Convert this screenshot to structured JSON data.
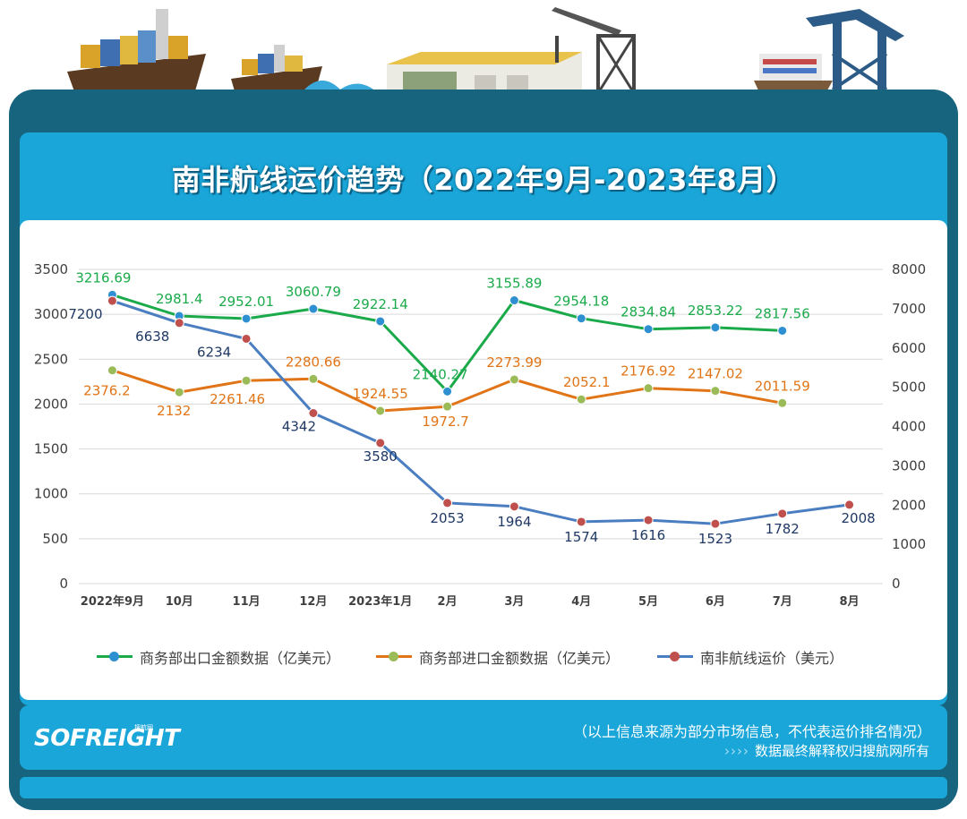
{
  "title": "南非航线运价趋势（2022年9月-2023年8月）",
  "brand": {
    "logo": "SOFREIGHT",
    "logo_sub": "搜航网"
  },
  "footer": {
    "note": "（以上信息来源为部分市场信息，不代表运价排名情况）",
    "arrows": "››››",
    "copyright": "数据最终解释权归搜航网所有"
  },
  "colors": {
    "frame": "#17647f",
    "accent": "#1aa6d8",
    "export_line": "#1aaa4a",
    "export_marker": "#2e8fd1",
    "import_line": "#e07416",
    "import_marker": "#9bbb59",
    "freight_line": "#4a7ec0",
    "freight_marker": "#c0504d"
  },
  "chart_data": {
    "type": "line",
    "categories": [
      "2022年9月",
      "10月",
      "11月",
      "12月",
      "2023年1月",
      "2月",
      "3月",
      "4月",
      "5月",
      "6月",
      "7月",
      "8月"
    ],
    "y_left": {
      "min": 0,
      "max": 3500,
      "ticks": [
        0,
        500,
        1000,
        1500,
        2000,
        2500,
        3000,
        3500
      ]
    },
    "y_right": {
      "min": 0,
      "max": 8000,
      "ticks": [
        0,
        1000,
        2000,
        3000,
        4000,
        5000,
        6000,
        7000,
        8000
      ]
    },
    "series": [
      {
        "key": "export",
        "name": "商务部出口金额数据（亿美元）",
        "axis": "left",
        "values": [
          3216.69,
          2981.4,
          2952.01,
          3060.79,
          2922.14,
          2140.27,
          3155.89,
          2954.18,
          2834.84,
          2853.22,
          2817.56,
          null
        ],
        "labels": [
          "3216.69",
          "2981.4",
          "2952.01",
          "3060.79",
          "2922.14",
          "2140.27",
          "3155.89",
          "2954.18",
          "2834.84",
          "2853.22",
          "2817.56",
          ""
        ]
      },
      {
        "key": "import",
        "name": "商务部进口金额数据（亿美元）",
        "axis": "left",
        "values": [
          2376.2,
          2132,
          2261.46,
          2280.66,
          1924.55,
          1972.7,
          2273.99,
          2052.1,
          2176.92,
          2147.02,
          2011.59,
          null
        ],
        "labels": [
          "2376.2",
          "2132",
          "2261.46",
          "2280.66",
          "1924.55",
          "1972.7",
          "2273.99",
          "2052.1",
          "2176.92",
          "2147.02",
          "2011.59",
          ""
        ]
      },
      {
        "key": "freight",
        "name": "南非航线运价（美元）",
        "axis": "right",
        "values": [
          7200,
          6638,
          6234,
          4342,
          3580,
          2053,
          1964,
          1574,
          1616,
          1523,
          1782,
          2008
        ],
        "labels": [
          "7200",
          "6638",
          "6234",
          "4342",
          "3580",
          "2053",
          "1964",
          "1574",
          "1616",
          "1523",
          "1782",
          "2008"
        ]
      }
    ],
    "legend_position": "bottom",
    "grid": true
  }
}
